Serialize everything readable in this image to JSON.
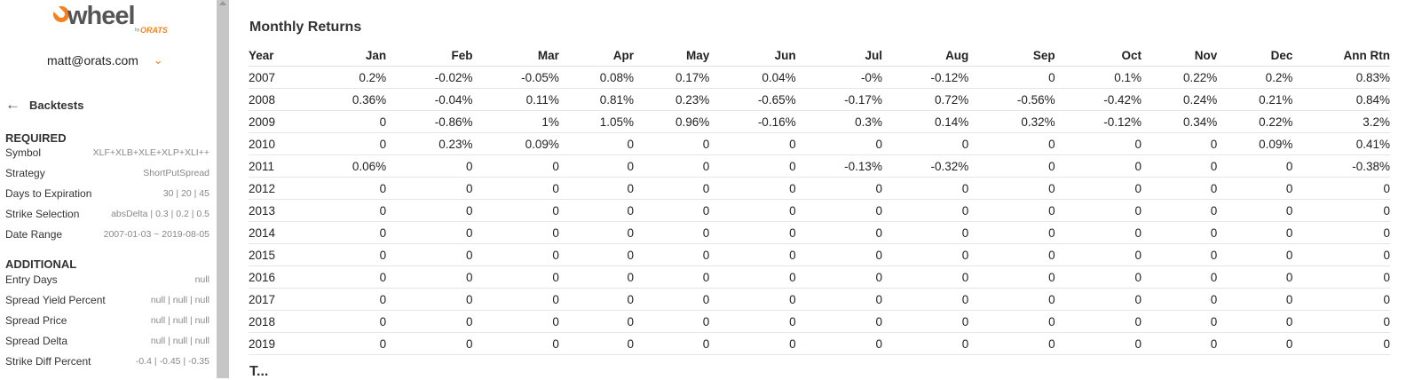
{
  "brand": {
    "word": "wheel",
    "by": "by",
    "sub": "ORATS"
  },
  "user": {
    "email": "matt@orats.com"
  },
  "nav": {
    "back_label": "Backtests"
  },
  "required": {
    "heading": "REQUIRED",
    "rows": [
      {
        "key": "Symbol",
        "value": "XLF+XLB+XLE+XLP+XLI++"
      },
      {
        "key": "Strategy",
        "value": "ShortPutSpread"
      },
      {
        "key": "Days to Expiration",
        "value": "30 | 20 | 45"
      },
      {
        "key": "Strike Selection",
        "value": "absDelta | 0.3 | 0.2 | 0.5"
      },
      {
        "key": "Date Range",
        "value": "2007-01-03 ~ 2019-08-05"
      }
    ]
  },
  "additional": {
    "heading": "ADDITIONAL",
    "rows": [
      {
        "key": "Entry Days",
        "value": "null"
      },
      {
        "key": "Spread Yield Percent",
        "value": "null | null | null"
      },
      {
        "key": "Spread Price",
        "value": "null | null | null"
      },
      {
        "key": "Spread Delta",
        "value": "null | null | null"
      },
      {
        "key": "Strike Diff Percent",
        "value": "-0.4 | -0.45 | -0.35"
      }
    ]
  },
  "monthly_returns": {
    "title": "Monthly Returns",
    "columns": [
      "Year",
      "Jan",
      "Feb",
      "Mar",
      "Apr",
      "May",
      "Jun",
      "Jul",
      "Aug",
      "Sep",
      "Oct",
      "Nov",
      "Dec",
      "Ann Rtn"
    ],
    "rows": [
      [
        "2007",
        "0.2%",
        "-0.02%",
        "-0.05%",
        "0.08%",
        "0.17%",
        "0.04%",
        "-0%",
        "-0.12%",
        "0",
        "0.1%",
        "0.22%",
        "0.2%",
        "0.83%"
      ],
      [
        "2008",
        "0.36%",
        "-0.04%",
        "0.11%",
        "0.81%",
        "0.23%",
        "-0.65%",
        "-0.17%",
        "0.72%",
        "-0.56%",
        "-0.42%",
        "0.24%",
        "0.21%",
        "0.84%"
      ],
      [
        "2009",
        "0",
        "-0.86%",
        "1%",
        "1.05%",
        "0.96%",
        "-0.16%",
        "0.3%",
        "0.14%",
        "0.32%",
        "-0.12%",
        "0.34%",
        "0.22%",
        "3.2%"
      ],
      [
        "2010",
        "0",
        "0.23%",
        "0.09%",
        "0",
        "0",
        "0",
        "0",
        "0",
        "0",
        "0",
        "0",
        "0.09%",
        "0.41%"
      ],
      [
        "2011",
        "0.06%",
        "0",
        "0",
        "0",
        "0",
        "0",
        "-0.13%",
        "-0.32%",
        "0",
        "0",
        "0",
        "0",
        "-0.38%"
      ],
      [
        "2012",
        "0",
        "0",
        "0",
        "0",
        "0",
        "0",
        "0",
        "0",
        "0",
        "0",
        "0",
        "0",
        "0"
      ],
      [
        "2013",
        "0",
        "0",
        "0",
        "0",
        "0",
        "0",
        "0",
        "0",
        "0",
        "0",
        "0",
        "0",
        "0"
      ],
      [
        "2014",
        "0",
        "0",
        "0",
        "0",
        "0",
        "0",
        "0",
        "0",
        "0",
        "0",
        "0",
        "0",
        "0"
      ],
      [
        "2015",
        "0",
        "0",
        "0",
        "0",
        "0",
        "0",
        "0",
        "0",
        "0",
        "0",
        "0",
        "0",
        "0"
      ],
      [
        "2016",
        "0",
        "0",
        "0",
        "0",
        "0",
        "0",
        "0",
        "0",
        "0",
        "0",
        "0",
        "0",
        "0"
      ],
      [
        "2017",
        "0",
        "0",
        "0",
        "0",
        "0",
        "0",
        "0",
        "0",
        "0",
        "0",
        "0",
        "0",
        "0"
      ],
      [
        "2018",
        "0",
        "0",
        "0",
        "0",
        "0",
        "0",
        "0",
        "0",
        "0",
        "0",
        "0",
        "0",
        "0"
      ],
      [
        "2019",
        "0",
        "0",
        "0",
        "0",
        "0",
        "0",
        "0",
        "0",
        "0",
        "0",
        "0",
        "0",
        "0"
      ]
    ]
  },
  "next_section": {
    "title": "T..."
  },
  "icons": {
    "user_menu": "chevron-down-icon",
    "back": "arrow-left-icon",
    "scroll": "scroll-up-arrow-icon"
  },
  "colors": {
    "accent": "#f58220",
    "scrollbar": "#c6c6c6"
  }
}
